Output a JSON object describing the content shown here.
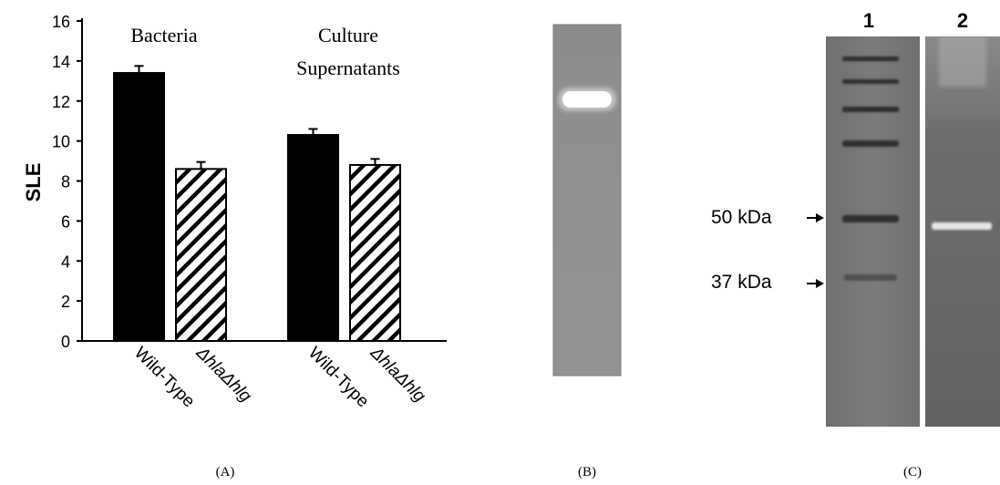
{
  "chart_data": {
    "type": "bar",
    "ylabel": "SLE",
    "ylim": [
      0,
      16
    ],
    "yticks": [
      "0",
      "2",
      "4",
      "6",
      "8",
      "10",
      "12",
      "14",
      "16"
    ],
    "groups": [
      {
        "label": "Bacteria",
        "label_lines": [
          "Bacteria"
        ]
      },
      {
        "label": "Culture Supernatants",
        "label_lines": [
          "Culture",
          "Supernatants"
        ]
      }
    ],
    "series": [
      {
        "name": "Wild-Type",
        "fill": "#000000",
        "pattern": "solid",
        "values": [
          13.4,
          10.3
        ],
        "errors": [
          0.35,
          0.3
        ]
      },
      {
        "name": "ΔhlaΔhlg",
        "fill": "#ffffff",
        "pattern": "diagonal-hatch",
        "values": [
          8.6,
          8.8
        ],
        "errors": [
          0.35,
          0.3
        ]
      }
    ],
    "grid": false,
    "legend": "none"
  },
  "gel_c": {
    "lane_labels": [
      "1",
      "2"
    ],
    "markers": [
      "50 kDa",
      "37 kDa"
    ]
  },
  "panel_labels": [
    "(A)",
    "(B)",
    "(C)"
  ]
}
